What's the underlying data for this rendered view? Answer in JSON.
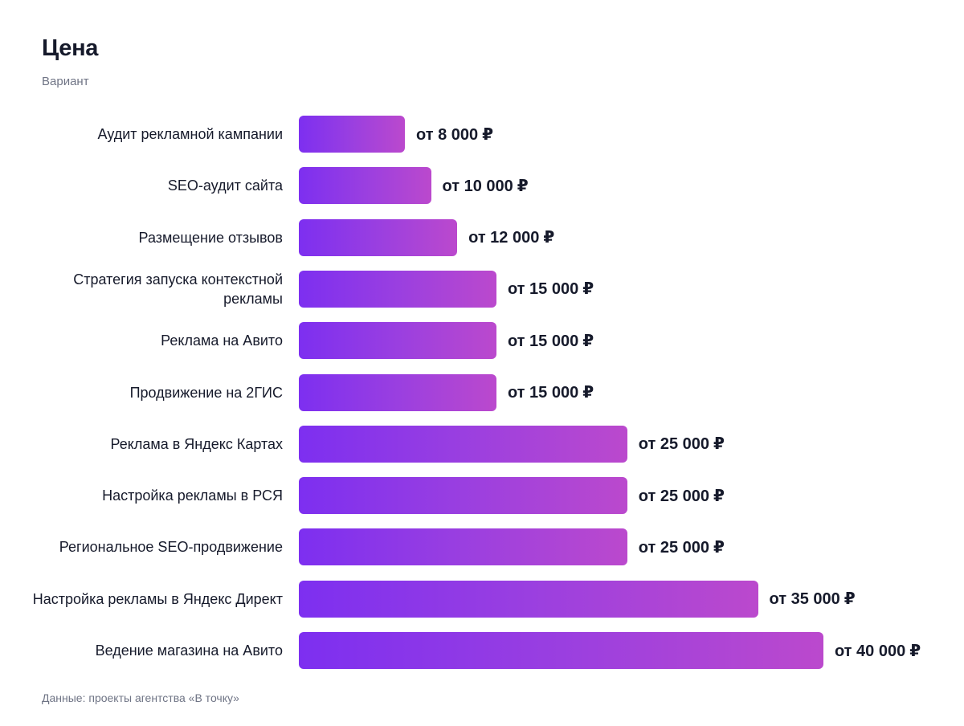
{
  "header": {
    "title": "Цена",
    "subtitle": "Вариант"
  },
  "footer": {
    "source": "Данные: проекты агентства «В точку»"
  },
  "colors": {
    "bar_start": "#7d2ff0",
    "bar_end": "#bb49cd",
    "text": "#161a2b",
    "muted": "#6f7485"
  },
  "chart_data": {
    "type": "bar",
    "orientation": "horizontal",
    "title": "Цена",
    "subtitle": "Вариант",
    "xlim": [
      0,
      40000
    ],
    "grid": false,
    "value_prefix": "от",
    "currency": "₽",
    "categories": [
      "Аудит рекламной кампании",
      "SEO-аудит сайта",
      "Размещение отзывов",
      "Стратегия запуска контекстной рекламы",
      "Реклама на Авито",
      "Продвижение на 2ГИС",
      "Реклама в Яндекс Картах",
      "Настройка рекламы в РСЯ",
      "Региональное SEO-продвижение",
      "Настройка рекламы в Яндекс Директ",
      "Ведение магазина на Авито"
    ],
    "values": [
      8000,
      10000,
      12000,
      15000,
      15000,
      15000,
      25000,
      25000,
      25000,
      35000,
      40000
    ],
    "value_labels": [
      "от 8 000",
      "от 10 000",
      "от 12 000",
      "от 15 000",
      "от 15 000",
      "от 15 000",
      "от 25 000",
      "от 25 000",
      "от 25 000",
      "от 35 000",
      "от 40 000"
    ]
  }
}
